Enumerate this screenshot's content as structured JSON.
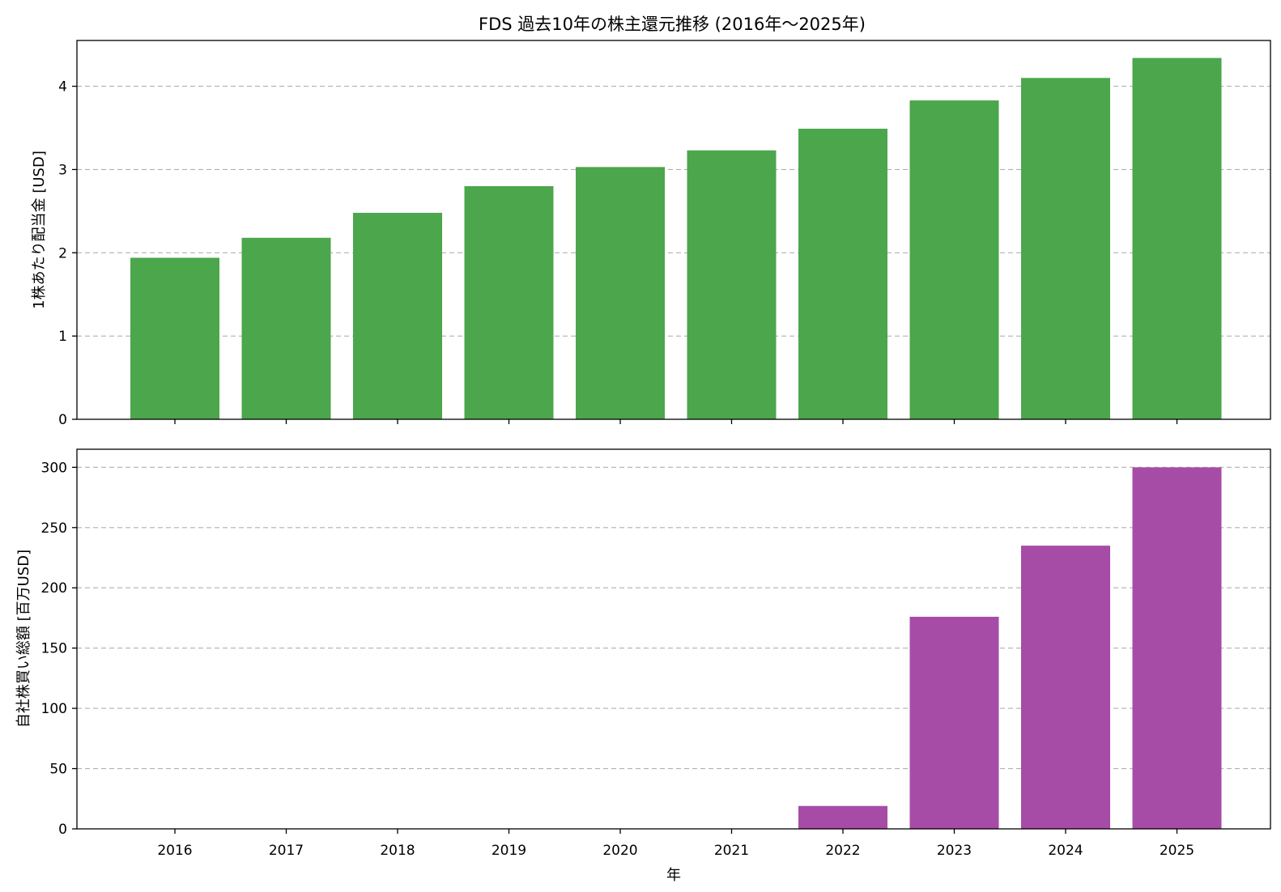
{
  "chart_data": [
    {
      "type": "bar",
      "title": "FDS 過去10年の株主還元推移 (2016年～2025年)",
      "categories": [
        "2016",
        "2017",
        "2018",
        "2019",
        "2020",
        "2021",
        "2022",
        "2023",
        "2024",
        "2025"
      ],
      "values": [
        1.94,
        2.18,
        2.48,
        2.8,
        3.03,
        3.23,
        3.49,
        3.83,
        4.1,
        4.34
      ],
      "xlabel": "",
      "ylabel": "1株あたり配当金 [USD]",
      "ylim": [
        0,
        4.55
      ],
      "yticks": [
        0,
        1,
        2,
        3,
        4
      ],
      "grid": "y-dashed",
      "color": "#4ca64c"
    },
    {
      "type": "bar",
      "title": "",
      "categories": [
        "2016",
        "2017",
        "2018",
        "2019",
        "2020",
        "2021",
        "2022",
        "2023",
        "2024",
        "2025"
      ],
      "values": [
        0,
        0,
        0,
        0,
        0,
        0,
        19,
        176,
        235,
        300
      ],
      "xlabel": "年",
      "ylabel": "自社株買い総額 [百万USD]",
      "ylim": [
        0,
        315
      ],
      "yticks": [
        0,
        50,
        100,
        150,
        200,
        250,
        300
      ],
      "grid": "y-dashed",
      "color": "#a64ca6"
    }
  ]
}
